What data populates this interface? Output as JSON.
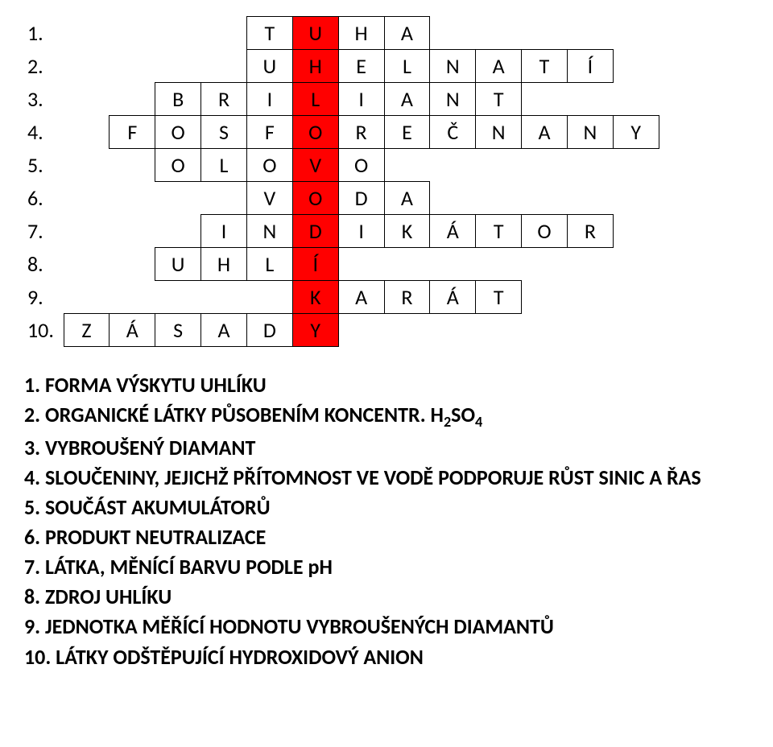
{
  "grid": {
    "cols": 15,
    "highlight_color": "#ff0000",
    "rows": [
      {
        "num": "1.",
        "start": 4,
        "highlight": 5,
        "letters": [
          "T",
          "U",
          "H",
          "A"
        ]
      },
      {
        "num": "2.",
        "start": 4,
        "highlight": 5,
        "letters": [
          "U",
          "H",
          "E",
          "L",
          "N",
          "A",
          "T",
          "Í"
        ]
      },
      {
        "num": "3.",
        "start": 2,
        "highlight": 5,
        "letters": [
          "B",
          "R",
          "I",
          "L",
          "I",
          "A",
          "N",
          "T"
        ]
      },
      {
        "num": "4.",
        "start": 1,
        "highlight": 5,
        "letters": [
          "F",
          "O",
          "S",
          "F",
          "O",
          "R",
          "E",
          "Č",
          "N",
          "A",
          "N",
          "Y"
        ]
      },
      {
        "num": "5.",
        "start": 2,
        "highlight": 5,
        "letters": [
          "O",
          "L",
          "O",
          "V",
          "O"
        ]
      },
      {
        "num": "6.",
        "start": 4,
        "highlight": 5,
        "letters": [
          "V",
          "O",
          "D",
          "A"
        ]
      },
      {
        "num": "7.",
        "start": 3,
        "highlight": 5,
        "letters": [
          "I",
          "N",
          "D",
          "I",
          "K",
          "Á",
          "T",
          "O",
          "R"
        ]
      },
      {
        "num": "8.",
        "start": 2,
        "highlight": 5,
        "letters": [
          "U",
          "H",
          "L",
          "Í"
        ]
      },
      {
        "num": "9.",
        "start": 5,
        "highlight": 5,
        "letters": [
          "K",
          "A",
          "R",
          "Á",
          "T"
        ]
      },
      {
        "num": "10.",
        "start": 0,
        "highlight": 5,
        "letters": [
          "Z",
          "Á",
          "S",
          "A",
          "D",
          "Y"
        ]
      }
    ]
  },
  "clues": [
    "1. FORMA VÝSKYTU UHLÍKU",
    "2. ORGANICKÉ LÁTKY PŮSOBENÍM KONCENTR. H₂SO₄",
    "3. VYBROUŠENÝ DIAMANT",
    "4. SLOUČENINY, JEJICHŽ PŘÍTOMNOST VE VODĚ PODPORUJE RŮST SINIC A ŘAS",
    "5. SOUČÁST AKUMULÁTORŮ",
    "6. PRODUKT NEUTRALIZACE",
    "7. LÁTKA, MĚNÍCÍ BARVU PODLE pH",
    "8. ZDROJ UHLÍKU",
    "9. JEDNOTKA MĚŘÍCÍ HODNOTU VYBROUŠENÝCH DIAMANTŮ",
    "10. LÁTKY ODŠTĚPUJÍCÍ HYDROXIDOVÝ ANION"
  ]
}
